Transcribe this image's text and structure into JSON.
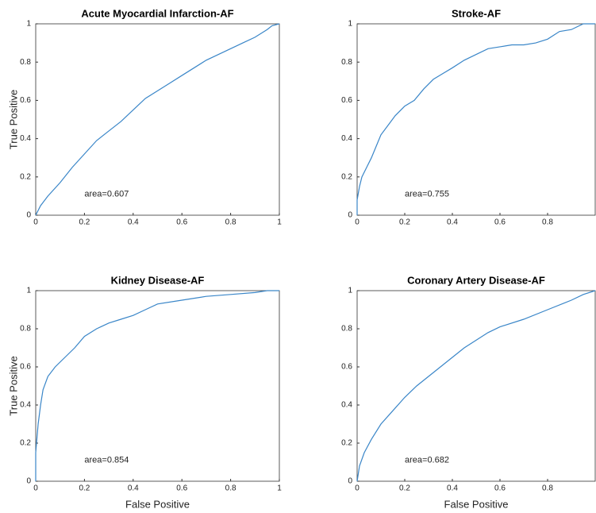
{
  "chart_data": [
    {
      "type": "line",
      "title": "Acute Myocardial Infarction-AF",
      "ylabel": "True Positive",
      "annotation": "area=0.607",
      "color": "#3a86c8",
      "xlim": [
        0,
        1
      ],
      "ylim": [
        0,
        1
      ],
      "xticks": [
        0,
        0.2,
        0.4,
        0.6,
        0.8,
        1
      ],
      "yticks": [
        0,
        0.2,
        0.4,
        0.6,
        0.8,
        1
      ],
      "x": [
        0,
        0.02,
        0.05,
        0.1,
        0.15,
        0.2,
        0.25,
        0.3,
        0.35,
        0.4,
        0.45,
        0.5,
        0.55,
        0.6,
        0.65,
        0.7,
        0.75,
        0.8,
        0.85,
        0.9,
        0.95,
        0.97,
        1
      ],
      "values": [
        0,
        0.05,
        0.1,
        0.17,
        0.25,
        0.32,
        0.39,
        0.44,
        0.49,
        0.55,
        0.61,
        0.65,
        0.69,
        0.73,
        0.77,
        0.81,
        0.84,
        0.87,
        0.9,
        0.93,
        0.97,
        0.99,
        1
      ]
    },
    {
      "type": "line",
      "title": "Stroke-AF",
      "annotation": "area=0.755",
      "color": "#3a86c8",
      "xlim": [
        0,
        1
      ],
      "ylim": [
        0,
        1
      ],
      "xticks": [
        0,
        0.2,
        0.4,
        0.6,
        0.8
      ],
      "yticks": [
        0,
        0.2,
        0.4,
        0.6,
        0.8,
        1
      ],
      "x": [
        0,
        0,
        0.01,
        0.02,
        0.04,
        0.06,
        0.08,
        0.1,
        0.13,
        0.16,
        0.2,
        0.24,
        0.28,
        0.32,
        0.36,
        0.4,
        0.45,
        0.5,
        0.55,
        0.6,
        0.65,
        0.7,
        0.75,
        0.8,
        0.85,
        0.9,
        0.95,
        1
      ],
      "values": [
        0,
        0.08,
        0.15,
        0.2,
        0.25,
        0.3,
        0.36,
        0.42,
        0.47,
        0.52,
        0.57,
        0.6,
        0.66,
        0.71,
        0.74,
        0.77,
        0.81,
        0.84,
        0.87,
        0.88,
        0.89,
        0.89,
        0.9,
        0.92,
        0.96,
        0.97,
        1,
        1
      ]
    },
    {
      "type": "line",
      "title": "Kidney Disease-AF",
      "ylabel": "True Positive",
      "xlabel": "False Positive",
      "annotation": "area=0.854",
      "color": "#3a86c8",
      "xlim": [
        0,
        1
      ],
      "ylim": [
        0,
        1
      ],
      "xticks": [
        0,
        0.2,
        0.4,
        0.6,
        0.8,
        1
      ],
      "yticks": [
        0,
        0.2,
        0.4,
        0.6,
        0.8,
        1
      ],
      "x": [
        0,
        0,
        0.01,
        0.02,
        0.03,
        0.05,
        0.08,
        0.12,
        0.16,
        0.2,
        0.25,
        0.3,
        0.35,
        0.4,
        0.45,
        0.5,
        0.6,
        0.7,
        0.8,
        0.9,
        0.95,
        1
      ],
      "values": [
        0,
        0.15,
        0.3,
        0.4,
        0.48,
        0.55,
        0.6,
        0.65,
        0.7,
        0.76,
        0.8,
        0.83,
        0.85,
        0.87,
        0.9,
        0.93,
        0.95,
        0.97,
        0.98,
        0.99,
        1,
        1
      ]
    },
    {
      "type": "line",
      "title": "Coronary Artery Disease-AF",
      "xlabel": "False Positive",
      "annotation": "area=0.682",
      "color": "#3a86c8",
      "xlim": [
        0,
        1
      ],
      "ylim": [
        0,
        1
      ],
      "xticks": [
        0,
        0.2,
        0.4,
        0.6,
        0.8
      ],
      "yticks": [
        0,
        0.2,
        0.4,
        0.6,
        0.8,
        1
      ],
      "x": [
        0,
        0.01,
        0.03,
        0.06,
        0.1,
        0.15,
        0.2,
        0.25,
        0.3,
        0.35,
        0.4,
        0.45,
        0.5,
        0.55,
        0.6,
        0.7,
        0.8,
        0.9,
        0.95,
        1
      ],
      "values": [
        0,
        0.08,
        0.15,
        0.22,
        0.3,
        0.37,
        0.44,
        0.5,
        0.55,
        0.6,
        0.65,
        0.7,
        0.74,
        0.78,
        0.81,
        0.85,
        0.9,
        0.95,
        0.98,
        1
      ]
    }
  ]
}
